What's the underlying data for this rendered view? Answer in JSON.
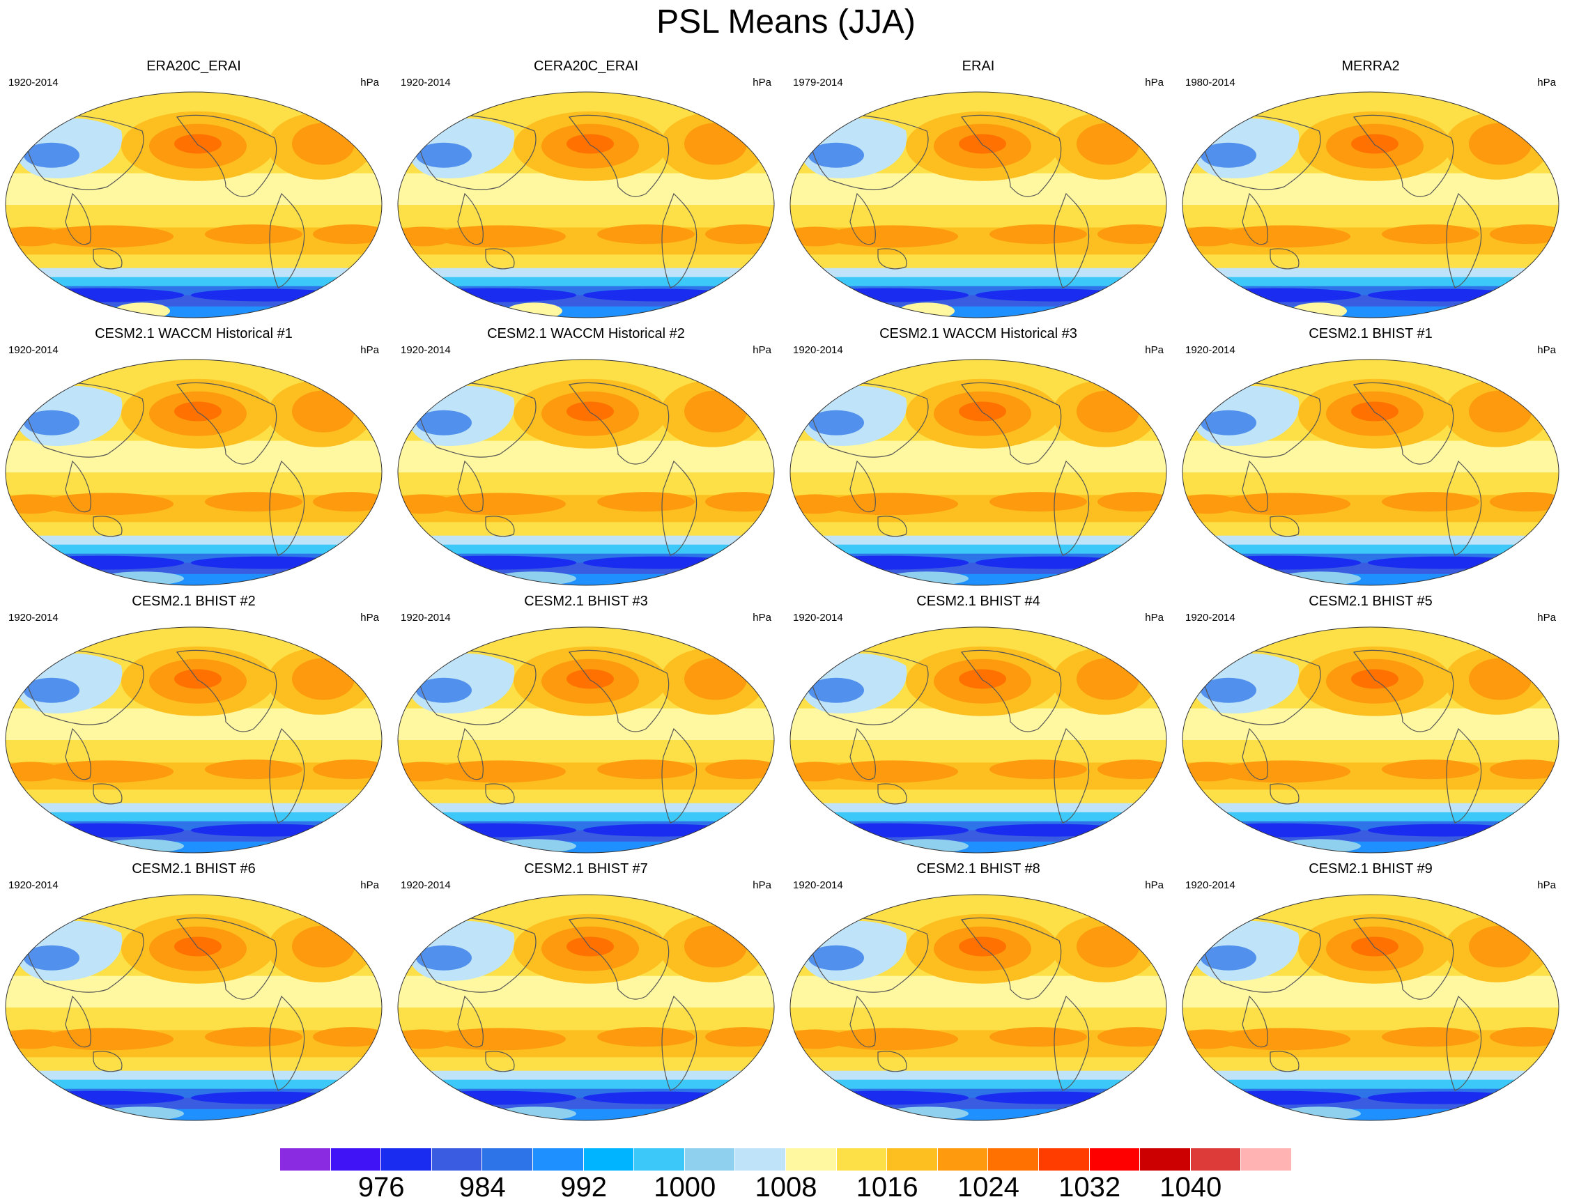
{
  "title": "PSL Means (JJA)",
  "colorbar": {
    "colors": [
      "#8a2be2",
      "#3f13f5",
      "#1a2cf0",
      "#3a5ce0",
      "#2c74e8",
      "#1e90ff",
      "#00b4ff",
      "#3cc8f8",
      "#8fd0ef",
      "#bfe3f8",
      "#fff8a0",
      "#fde047",
      "#fdbf1f",
      "#fd9a0d",
      "#ff7100",
      "#ff3d00",
      "#ff0000",
      "#cc0000",
      "#dd3a3a",
      "#ffb3b3"
    ],
    "labels": [
      "976",
      "984",
      "992",
      "1000",
      "1008",
      "1016",
      "1024",
      "1032",
      "1040"
    ]
  },
  "panels": [
    {
      "title": "ERA20C_ERAI",
      "years": "1920-2014",
      "units": "hPa"
    },
    {
      "title": "CERA20C_ERAI",
      "years": "1920-2014",
      "units": "hPa"
    },
    {
      "title": "ERAI",
      "years": "1979-2014",
      "units": "hPa"
    },
    {
      "title": "MERRA2",
      "years": "1980-2014",
      "units": "hPa"
    },
    {
      "title": "CESM2.1 WACCM Historical #1",
      "years": "1920-2014",
      "units": "hPa"
    },
    {
      "title": "CESM2.1 WACCM Historical #2",
      "years": "1920-2014",
      "units": "hPa"
    },
    {
      "title": "CESM2.1 WACCM Historical #3",
      "years": "1920-2014",
      "units": "hPa"
    },
    {
      "title": "CESM2.1 BHIST #1",
      "years": "1920-2014",
      "units": "hPa"
    },
    {
      "title": "CESM2.1 BHIST #2",
      "years": "1920-2014",
      "units": "hPa"
    },
    {
      "title": "CESM2.1 BHIST #3",
      "years": "1920-2014",
      "units": "hPa"
    },
    {
      "title": "CESM2.1 BHIST #4",
      "years": "1920-2014",
      "units": "hPa"
    },
    {
      "title": "CESM2.1 BHIST #5",
      "years": "1920-2014",
      "units": "hPa"
    },
    {
      "title": "CESM2.1 BHIST #6",
      "years": "1920-2014",
      "units": "hPa"
    },
    {
      "title": "CESM2.1 BHIST #7",
      "years": "1920-2014",
      "units": "hPa"
    },
    {
      "title": "CESM2.1 BHIST #8",
      "years": "1920-2014",
      "units": "hPa"
    },
    {
      "title": "CESM2.1 BHIST #9",
      "years": "1920-2014",
      "units": "hPa"
    }
  ]
}
